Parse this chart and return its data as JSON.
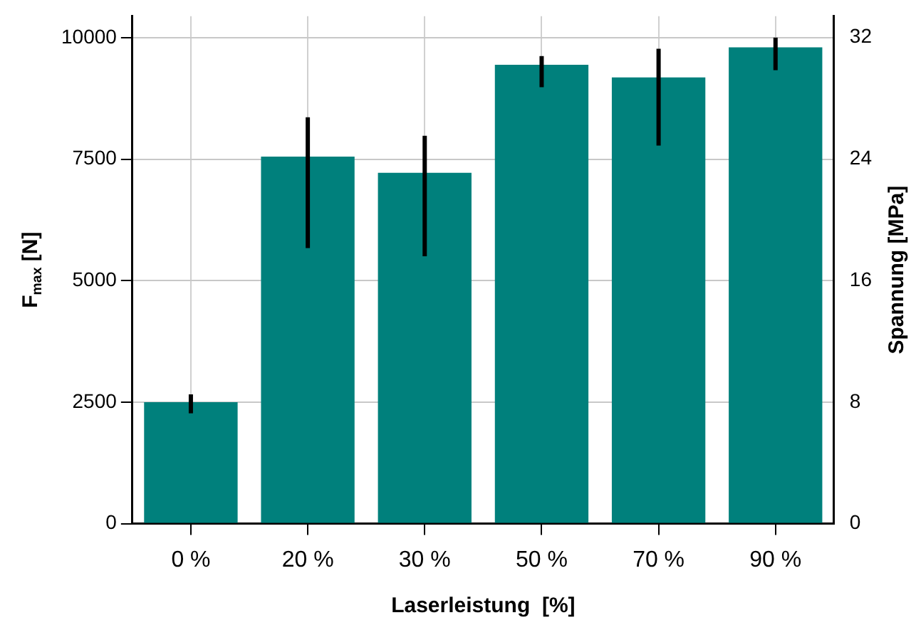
{
  "chart_data": {
    "type": "bar",
    "xlabel": "Laserleistung  [%]",
    "ylabel": "F$_{max}$ [N]",
    "y2label": "Spannung [MPa]",
    "categories": [
      "0 %",
      "20 %",
      "30 %",
      "50 %",
      "70 %",
      "90 %"
    ],
    "values": [
      2500,
      7550,
      7220,
      9440,
      9180,
      9800
    ],
    "errors": [
      [
        2270,
        2660
      ],
      [
        5670,
        8360
      ],
      [
        5500,
        7980
      ],
      [
        8980,
        9620
      ],
      [
        7780,
        9770
      ],
      [
        9330,
        10000
      ]
    ],
    "color": "#00807c",
    "ylim": [
      0,
      10440
    ],
    "yticks": [
      0,
      2500,
      5000,
      7500,
      10000
    ],
    "y2lim": [
      0,
      33.4
    ],
    "y2ticks": [
      0,
      8,
      16,
      24,
      32
    ],
    "grid": true,
    "legend": false
  }
}
